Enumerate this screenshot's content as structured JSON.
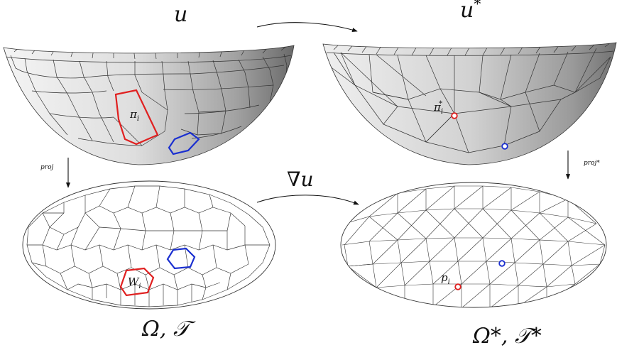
{
  "labels": {
    "u": "u",
    "u_star": "u*",
    "grad_u": "∇u",
    "proj": "proj",
    "proj_star": "proj*",
    "pi_i": "π",
    "pi_i_sub": "i",
    "pi_star": "π",
    "pi_star_sub": "i",
    "pi_star_sup": "*",
    "W_i": "W",
    "W_i_sub": "i",
    "p_i": "p",
    "p_i_sub": "i",
    "omega_T": "Ω, 𝒯",
    "omega_T_star": "Ω*, 𝒯*"
  },
  "colors": {
    "highlight_red": "#e02020",
    "highlight_blue": "#1a2fd0",
    "mesh_line": "#2a2a2a",
    "surface_light": "#f2f2f2",
    "surface_dark": "#6e6e6e"
  }
}
